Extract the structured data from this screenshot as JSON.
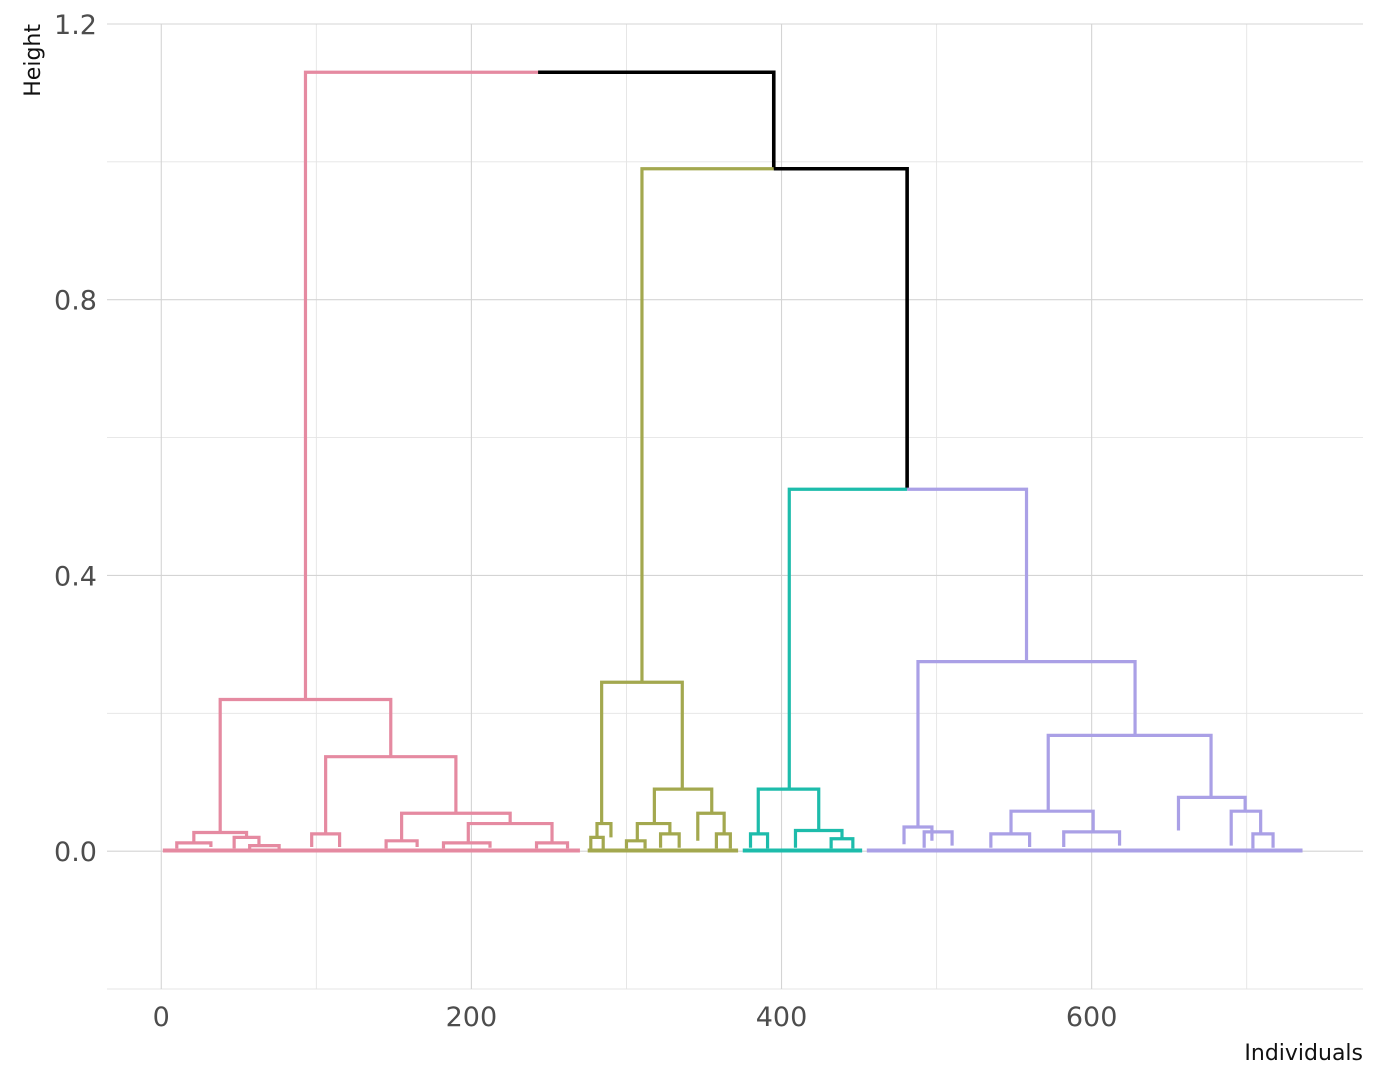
{
  "chart_data": {
    "type": "dendrogram",
    "xlabel": "Individuals",
    "ylabel": "Height",
    "xlim": [
      -35,
      775
    ],
    "ylim": [
      -0.2,
      1.2
    ],
    "x_ticks": [
      0,
      200,
      400,
      600
    ],
    "x_tick_labels": [
      "0",
      "200",
      "400",
      "600"
    ],
    "y_ticks": [
      0.0,
      0.4,
      0.8,
      1.2
    ],
    "y_tick_labels": [
      "0.0",
      "0.4",
      "0.8",
      "1.2"
    ],
    "grid": true,
    "legend": "none",
    "clusters": [
      {
        "id": "c1",
        "color": "#e58aa1",
        "x_range": [
          1,
          270
        ]
      },
      {
        "id": "c2",
        "color": "#a3a84f",
        "x_range": [
          275,
          372
        ]
      },
      {
        "id": "c3",
        "color": "#1dbcab",
        "x_range": [
          375,
          452
        ]
      },
      {
        "id": "c4",
        "color": "#aaa0e6",
        "x_range": [
          455,
          736
        ]
      }
    ],
    "links": [
      {
        "color": "#e58aa1",
        "x1": 93,
        "x2": 243,
        "h": 1.13,
        "h1": 0.22,
        "h2": 1.13
      },
      {
        "color": "#000000",
        "x1": 243,
        "x2": 395,
        "h": 1.13,
        "h1": 1.13,
        "h2": 0.99
      },
      {
        "color": "#a3a84f",
        "x1": 310,
        "x2": 395,
        "h": 0.99,
        "h1": 0.245,
        "h2": 0.99
      },
      {
        "color": "#000000",
        "x1": 395,
        "x2": 481,
        "h": 0.99,
        "h1": 0.99,
        "h2": 0.525
      },
      {
        "color": "#1dbcab",
        "x1": 405,
        "x2": 481,
        "h": 0.525,
        "h1": 0.09,
        "h2": 0.525
      },
      {
        "color": "#aaa0e6",
        "x1": 481,
        "x2": 558,
        "h": 0.525,
        "h1": 0.525,
        "h2": 0.275
      },
      {
        "color": "#e58aa1",
        "x1": 38,
        "x2": 148,
        "h": 0.22,
        "h1": 0.027,
        "h2": 0.137
      },
      {
        "color": "#e58aa1",
        "x1": 106,
        "x2": 190,
        "h": 0.137,
        "h1": 0.025,
        "h2": 0.055
      },
      {
        "color": "#e58aa1",
        "x1": 155,
        "x2": 225,
        "h": 0.055,
        "h1": 0.015,
        "h2": 0.04
      },
      {
        "color": "#e58aa1",
        "x1": 198,
        "x2": 252,
        "h": 0.04,
        "h1": 0.012,
        "h2": 0.012
      },
      {
        "color": "#e58aa1",
        "x1": 21,
        "x2": 55,
        "h": 0.027,
        "h1": 0.012,
        "h2": 0.02
      },
      {
        "color": "#e58aa1",
        "x1": 10,
        "x2": 32,
        "h": 0.012,
        "h1": 0.004,
        "h2": 0.006
      },
      {
        "color": "#e58aa1",
        "x1": 47,
        "x2": 63,
        "h": 0.02,
        "h1": 0.004,
        "h2": 0.008
      },
      {
        "color": "#e58aa1",
        "x1": 57,
        "x2": 76,
        "h": 0.008,
        "h1": 0.003,
        "h2": 0.003
      },
      {
        "color": "#e58aa1",
        "x1": 97,
        "x2": 115,
        "h": 0.025,
        "h1": 0.006,
        "h2": 0.006
      },
      {
        "color": "#e58aa1",
        "x1": 145,
        "x2": 165,
        "h": 0.015,
        "h1": 0.004,
        "h2": 0.006
      },
      {
        "color": "#e58aa1",
        "x1": 182,
        "x2": 212,
        "h": 0.012,
        "h1": 0.004,
        "h2": 0.005
      },
      {
        "color": "#e58aa1",
        "x1": 242,
        "x2": 262,
        "h": 0.012,
        "h1": 0.004,
        "h2": 0.004
      },
      {
        "color": "#a3a84f",
        "x1": 284,
        "x2": 336,
        "h": 0.245,
        "h1": 0.04,
        "h2": 0.09
      },
      {
        "color": "#a3a84f",
        "x1": 318,
        "x2": 355,
        "h": 0.09,
        "h1": 0.04,
        "h2": 0.055
      },
      {
        "color": "#a3a84f",
        "x1": 281,
        "x2": 290,
        "h": 0.04,
        "h1": 0.02,
        "h2": 0.02
      },
      {
        "color": "#a3a84f",
        "x1": 307,
        "x2": 328,
        "h": 0.04,
        "h1": 0.015,
        "h2": 0.025
      },
      {
        "color": "#a3a84f",
        "x1": 346,
        "x2": 363,
        "h": 0.055,
        "h1": 0.015,
        "h2": 0.025
      },
      {
        "color": "#a3a84f",
        "x1": 277,
        "x2": 285,
        "h": 0.02,
        "h1": 0.003,
        "h2": 0.003
      },
      {
        "color": "#a3a84f",
        "x1": 300,
        "x2": 312,
        "h": 0.015,
        "h1": 0.004,
        "h2": 0.004
      },
      {
        "color": "#a3a84f",
        "x1": 322,
        "x2": 334,
        "h": 0.025,
        "h1": 0.005,
        "h2": 0.005
      },
      {
        "color": "#a3a84f",
        "x1": 358,
        "x2": 367,
        "h": 0.025,
        "h1": 0.004,
        "h2": 0.004
      },
      {
        "color": "#1dbcab",
        "x1": 385,
        "x2": 424,
        "h": 0.09,
        "h1": 0.025,
        "h2": 0.03
      },
      {
        "color": "#1dbcab",
        "x1": 380,
        "x2": 391,
        "h": 0.025,
        "h1": 0.005,
        "h2": 0.004
      },
      {
        "color": "#1dbcab",
        "x1": 409,
        "x2": 439,
        "h": 0.03,
        "h1": 0.005,
        "h2": 0.018
      },
      {
        "color": "#1dbcab",
        "x1": 432,
        "x2": 446,
        "h": 0.018,
        "h1": 0.004,
        "h2": 0.004
      },
      {
        "color": "#aaa0e6",
        "x1": 488,
        "x2": 628,
        "h": 0.275,
        "h1": 0.035,
        "h2": 0.168
      },
      {
        "color": "#aaa0e6",
        "x1": 572,
        "x2": 677,
        "h": 0.168,
        "h1": 0.058,
        "h2": 0.078
      },
      {
        "color": "#aaa0e6",
        "x1": 548,
        "x2": 601,
        "h": 0.058,
        "h1": 0.025,
        "h2": 0.028
      },
      {
        "color": "#aaa0e6",
        "x1": 656,
        "x2": 699,
        "h": 0.078,
        "h1": 0.03,
        "h2": 0.058
      },
      {
        "color": "#aaa0e6",
        "x1": 690,
        "x2": 709,
        "h": 0.058,
        "h1": 0.008,
        "h2": 0.025
      },
      {
        "color": "#aaa0e6",
        "x1": 479,
        "x2": 497,
        "h": 0.035,
        "h1": 0.01,
        "h2": 0.015
      },
      {
        "color": "#aaa0e6",
        "x1": 492,
        "x2": 510,
        "h": 0.028,
        "h1": 0.005,
        "h2": 0.008
      },
      {
        "color": "#aaa0e6",
        "x1": 535,
        "x2": 560,
        "h": 0.025,
        "h1": 0.005,
        "h2": 0.006
      },
      {
        "color": "#aaa0e6",
        "x1": 582,
        "x2": 618,
        "h": 0.028,
        "h1": 0.006,
        "h2": 0.008
      },
      {
        "color": "#aaa0e6",
        "x1": 704,
        "x2": 717,
        "h": 0.025,
        "h1": 0.004,
        "h2": 0.005
      }
    ]
  }
}
